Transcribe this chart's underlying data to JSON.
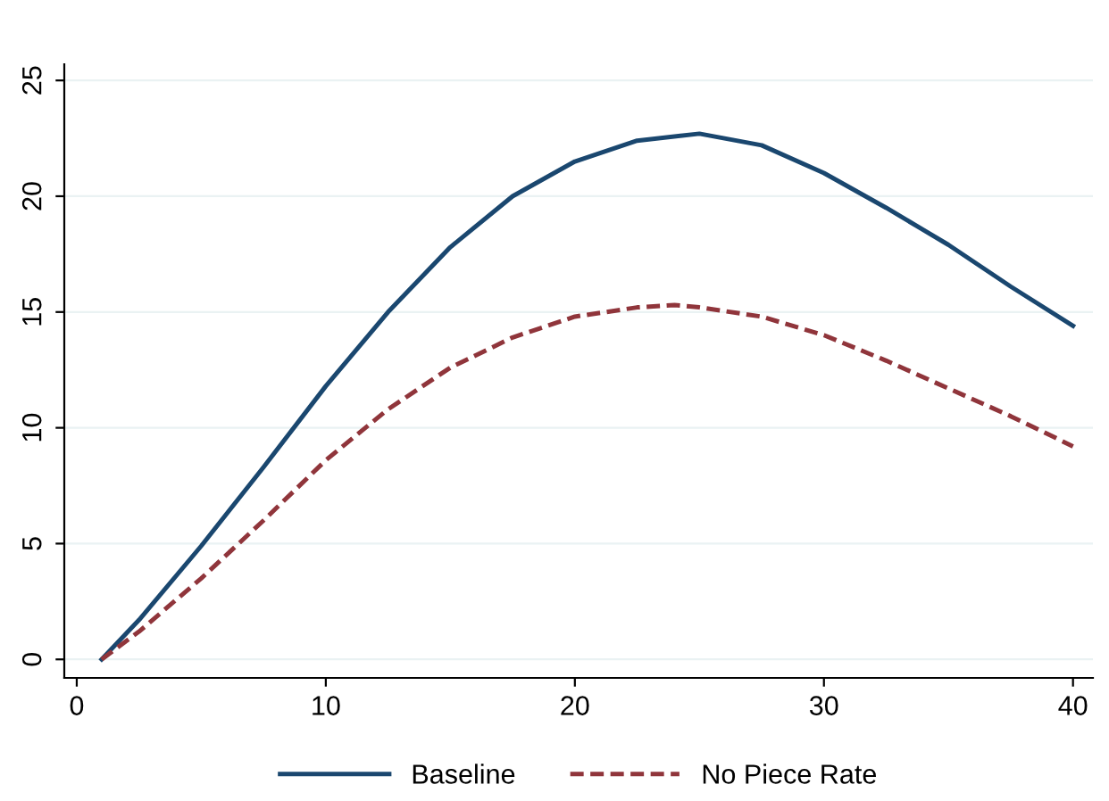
{
  "chart_data": {
    "type": "line",
    "xlim": [
      -0.5,
      40.8
    ],
    "xticks": [
      0,
      10,
      20,
      30,
      40
    ],
    "ylim": [
      -0.8,
      25.7
    ],
    "yticks": [
      0,
      5,
      10,
      15,
      20,
      25
    ],
    "grid": "y",
    "legend": "bottom",
    "series": [
      {
        "name": "Baseline",
        "color": "#1a476f",
        "line_style": "solid",
        "x": [
          1,
          2.5,
          5,
          7.5,
          10,
          12.5,
          15,
          17.5,
          20,
          22.5,
          25,
          27.5,
          30,
          32.5,
          35,
          37.5,
          40
        ],
        "values": [
          0,
          1.7,
          4.9,
          8.3,
          11.8,
          15.0,
          17.8,
          20.0,
          21.5,
          22.4,
          22.7,
          22.2,
          21.0,
          19.5,
          17.9,
          16.1,
          14.4
        ]
      },
      {
        "name": "No Piece Rate",
        "color": "#90353b",
        "line_style": "dashed",
        "x": [
          1,
          2.5,
          5,
          7.5,
          10,
          12.5,
          15,
          17.5,
          20,
          22.5,
          24,
          25,
          27.5,
          30,
          32.5,
          35,
          37.5,
          40
        ],
        "values": [
          0,
          1.2,
          3.5,
          6.0,
          8.6,
          10.8,
          12.6,
          13.9,
          14.8,
          15.2,
          15.3,
          15.2,
          14.8,
          14.0,
          12.9,
          11.7,
          10.5,
          9.2
        ]
      }
    ]
  }
}
